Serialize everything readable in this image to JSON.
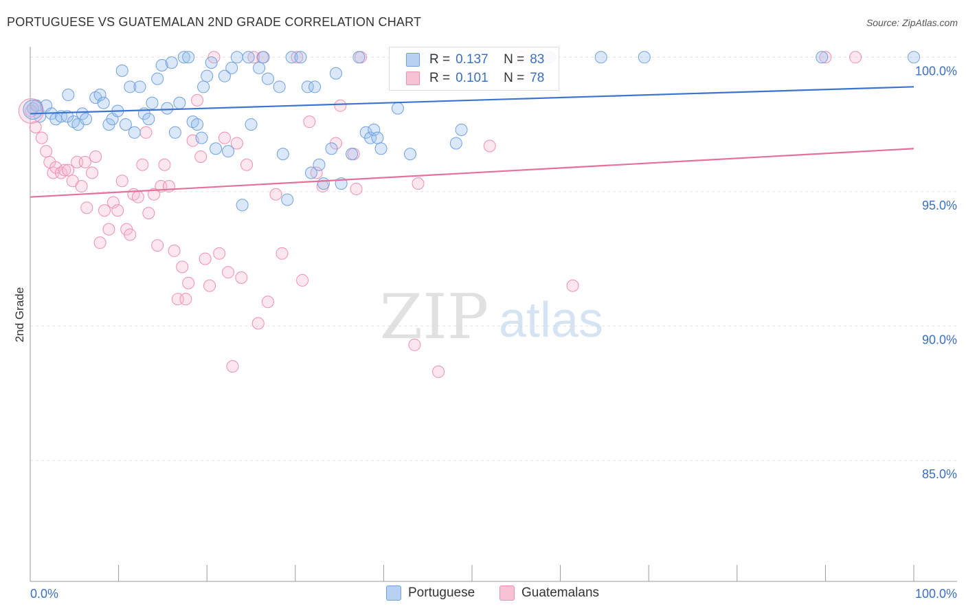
{
  "title": "PORTUGUESE VS GUATEMALAN 2ND GRADE CORRELATION CHART",
  "source": "Source: ZipAtlas.com",
  "watermark": {
    "zip": "ZIP",
    "atlas": "atlas"
  },
  "legend": {
    "rows": [
      {
        "r_label": "R =",
        "r_value": "0.137",
        "n_label": "N =",
        "n_value": "83",
        "color": "#6fa0e0",
        "fill": "#b8d0f2"
      },
      {
        "r_label": "R =",
        "r_value": "0.101",
        "n_label": "N =",
        "n_value": "78",
        "color": "#ef8fae",
        "fill": "#f7c3d4"
      }
    ]
  },
  "bottom_legend": [
    {
      "label": "Portuguese",
      "color": "#6fa0e0",
      "fill": "#b8d0f2"
    },
    {
      "label": "Guatemalans",
      "color": "#ef8fae",
      "fill": "#f7c3d4"
    }
  ],
  "chart_data": {
    "type": "scatter",
    "title": "PORTUGUESE VS GUATEMALAN 2ND GRADE CORRELATION CHART",
    "xlabel": "",
    "ylabel": "2nd Grade",
    "xlim": [
      0,
      100
    ],
    "ylim": [
      80.5,
      100.8
    ],
    "x_tick_labels": [
      "0.0%",
      "100.0%"
    ],
    "y_ticks": [
      85.0,
      90.0,
      95.0,
      100.0
    ],
    "y_tick_labels": [
      "85.0%",
      "90.0%",
      "95.0%",
      "100.0%"
    ],
    "grid": true,
    "legend_position": "top-center",
    "series": [
      {
        "name": "Portuguese",
        "color": "#3a74d0",
        "trend": {
          "x": [
            0,
            100
          ],
          "y": [
            97.9,
            98.9
          ]
        },
        "points": [
          [
            0.3,
            98.1
          ],
          [
            0.7,
            98.2
          ],
          [
            1.1,
            97.8
          ],
          [
            1.8,
            98.2
          ],
          [
            2.4,
            97.9
          ],
          [
            2.9,
            97.7
          ],
          [
            3.5,
            97.8
          ],
          [
            4.2,
            97.8
          ],
          [
            4.3,
            98.6
          ],
          [
            4.9,
            97.6
          ],
          [
            5.4,
            97.5
          ],
          [
            5.9,
            97.9
          ],
          [
            6.3,
            97.7
          ],
          [
            7.4,
            98.5
          ],
          [
            7.9,
            98.6
          ],
          [
            8.3,
            98.3
          ],
          [
            8.9,
            97.5
          ],
          [
            9.3,
            97.7
          ],
          [
            9.9,
            98.0
          ],
          [
            10.4,
            99.5
          ],
          [
            10.8,
            97.5
          ],
          [
            11.3,
            98.9
          ],
          [
            11.8,
            97.2
          ],
          [
            12.4,
            98.9
          ],
          [
            12.9,
            97.9
          ],
          [
            13.4,
            97.7
          ],
          [
            13.8,
            98.3
          ],
          [
            14.4,
            99.2
          ],
          [
            14.9,
            99.7
          ],
          [
            15.5,
            98.1
          ],
          [
            16.0,
            99.8
          ],
          [
            16.4,
            97.2
          ],
          [
            16.9,
            98.3
          ],
          [
            17.4,
            100.0
          ],
          [
            17.9,
            100.0
          ],
          [
            18.4,
            97.6
          ],
          [
            18.9,
            97.5
          ],
          [
            19.4,
            97.0
          ],
          [
            19.6,
            98.9
          ],
          [
            20.0,
            99.3
          ],
          [
            20.5,
            99.8
          ],
          [
            21.0,
            96.6
          ],
          [
            22.0,
            99.3
          ],
          [
            22.4,
            96.5
          ],
          [
            22.8,
            99.6
          ],
          [
            23.4,
            100.0
          ],
          [
            24.0,
            94.5
          ],
          [
            24.7,
            100.0
          ],
          [
            25.0,
            97.5
          ],
          [
            25.9,
            99.6
          ],
          [
            26.4,
            100.0
          ],
          [
            26.9,
            99.2
          ],
          [
            28.2,
            98.9
          ],
          [
            28.6,
            96.4
          ],
          [
            29.1,
            94.7
          ],
          [
            29.6,
            100.0
          ],
          [
            30.6,
            100.0
          ],
          [
            31.4,
            98.9
          ],
          [
            31.8,
            95.7
          ],
          [
            32.2,
            98.9
          ],
          [
            32.7,
            96.0
          ],
          [
            33.2,
            95.3
          ],
          [
            34.1,
            96.6
          ],
          [
            34.6,
            99.4
          ],
          [
            35.2,
            95.3
          ],
          [
            36.4,
            96.4
          ],
          [
            37.2,
            100.0
          ],
          [
            38.0,
            97.2
          ],
          [
            38.5,
            97.0
          ],
          [
            38.9,
            97.3
          ],
          [
            39.3,
            97.0
          ],
          [
            39.7,
            96.6
          ],
          [
            41.6,
            98.1
          ],
          [
            43.0,
            96.4
          ],
          [
            45.0,
            100.0
          ],
          [
            48.2,
            96.8
          ],
          [
            48.8,
            97.3
          ],
          [
            49.5,
            100.0
          ],
          [
            58.8,
            100.0
          ],
          [
            64.6,
            100.0
          ],
          [
            69.5,
            100.0
          ],
          [
            89.6,
            100.0
          ],
          [
            100.0,
            100.0
          ]
        ]
      },
      {
        "name": "Guatemalans",
        "color": "#e4719a",
        "trend": {
          "x": [
            0,
            100
          ],
          "y": [
            94.8,
            96.6
          ]
        },
        "points": [
          [
            0.1,
            98.0
          ],
          [
            0.6,
            97.4
          ],
          [
            1.3,
            97.0
          ],
          [
            1.8,
            96.5
          ],
          [
            2.2,
            96.1
          ],
          [
            2.6,
            95.7
          ],
          [
            2.9,
            95.9
          ],
          [
            3.5,
            95.7
          ],
          [
            3.9,
            95.8
          ],
          [
            4.3,
            95.8
          ],
          [
            4.8,
            95.4
          ],
          [
            5.3,
            96.1
          ],
          [
            5.8,
            95.2
          ],
          [
            6.2,
            96.1
          ],
          [
            6.4,
            94.4
          ],
          [
            7.0,
            95.7
          ],
          [
            7.4,
            96.3
          ],
          [
            7.9,
            93.1
          ],
          [
            8.4,
            94.3
          ],
          [
            8.9,
            93.6
          ],
          [
            9.4,
            94.6
          ],
          [
            9.9,
            94.3
          ],
          [
            10.4,
            95.4
          ],
          [
            10.9,
            93.6
          ],
          [
            11.3,
            93.4
          ],
          [
            11.7,
            94.9
          ],
          [
            12.2,
            94.8
          ],
          [
            12.7,
            96.0
          ],
          [
            13.1,
            97.2
          ],
          [
            13.4,
            94.2
          ],
          [
            14.0,
            94.9
          ],
          [
            14.4,
            93.0
          ],
          [
            14.8,
            95.2
          ],
          [
            15.2,
            96.0
          ],
          [
            15.7,
            95.2
          ],
          [
            16.3,
            92.8
          ],
          [
            16.7,
            91.0
          ],
          [
            17.2,
            92.2
          ],
          [
            17.6,
            91.0
          ],
          [
            17.9,
            91.6
          ],
          [
            18.4,
            96.9
          ],
          [
            18.9,
            98.4
          ],
          [
            19.3,
            96.3
          ],
          [
            19.8,
            92.5
          ],
          [
            20.3,
            91.5
          ],
          [
            20.8,
            100.0
          ],
          [
            21.4,
            92.7
          ],
          [
            22.0,
            97.0
          ],
          [
            22.4,
            92.0
          ],
          [
            22.9,
            88.5
          ],
          [
            23.4,
            96.8
          ],
          [
            23.9,
            91.8
          ],
          [
            24.5,
            96.0
          ],
          [
            25.3,
            100.0
          ],
          [
            25.8,
            90.1
          ],
          [
            26.3,
            100.0
          ],
          [
            26.9,
            90.9
          ],
          [
            27.8,
            94.9
          ],
          [
            28.5,
            92.7
          ],
          [
            30.2,
            100.0
          ],
          [
            30.8,
            91.7
          ],
          [
            31.6,
            97.6
          ],
          [
            32.4,
            95.7
          ],
          [
            33.1,
            95.2
          ],
          [
            34.6,
            96.8
          ],
          [
            35.1,
            98.2
          ],
          [
            36.6,
            96.4
          ],
          [
            36.9,
            95.1
          ],
          [
            37.4,
            100.0
          ],
          [
            43.5,
            89.3
          ],
          [
            43.9,
            95.3
          ],
          [
            46.2,
            88.3
          ],
          [
            52.0,
            96.7
          ],
          [
            55.6,
            100.0
          ],
          [
            58.6,
            100.0
          ],
          [
            61.4,
            91.5
          ],
          [
            90.0,
            100.0
          ],
          [
            93.4,
            100.0
          ]
        ]
      }
    ]
  }
}
